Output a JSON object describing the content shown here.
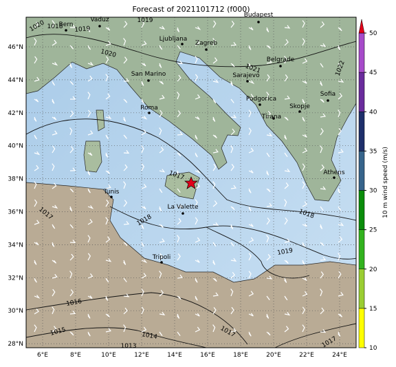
{
  "title": "Forecast of 2021101712 (f000)",
  "lat_labels": [
    "46°N",
    "44°N",
    "42°N",
    "40°N",
    "38°N",
    "36°N",
    "34°N",
    "32°N",
    "30°N",
    "28°N"
  ],
  "lon_labels": [
    "6°E",
    "8°E",
    "10°E",
    "12°E",
    "14°E",
    "16°E",
    "18°E",
    "20°E",
    "22°E",
    "24°E"
  ],
  "cities": [
    "Bern",
    "Vaduz",
    "Budapest",
    "Ljubljana",
    "Zagreb",
    "Belgrade",
    "San Marino",
    "Sarajevo",
    "Podgorica",
    "Roma",
    "Skopje",
    "Sofia",
    "Tirana",
    "Athens",
    "Tunis",
    "La Valette",
    "Tripoli"
  ],
  "isobar_labels": [
    "1020",
    "1018",
    "1019",
    "1019",
    "1020",
    "1021",
    "1022",
    "1017",
    "1018",
    "1018",
    "1019",
    "1016",
    "1015",
    "1014",
    "1013",
    "1017",
    "1017",
    "1017"
  ],
  "colorbar": {
    "label": "10 m wind speed (m/s)",
    "ticks": [
      10,
      15,
      20,
      25,
      30,
      35,
      40,
      45,
      50
    ],
    "colors": [
      "#ffff00",
      "#9acd32",
      "#32b21e",
      "#0a8c0a",
      "#36648b",
      "#1e2f6b",
      "#6a2c9c",
      "#a64ac9"
    ],
    "extend_color": "#e2001a"
  }
}
